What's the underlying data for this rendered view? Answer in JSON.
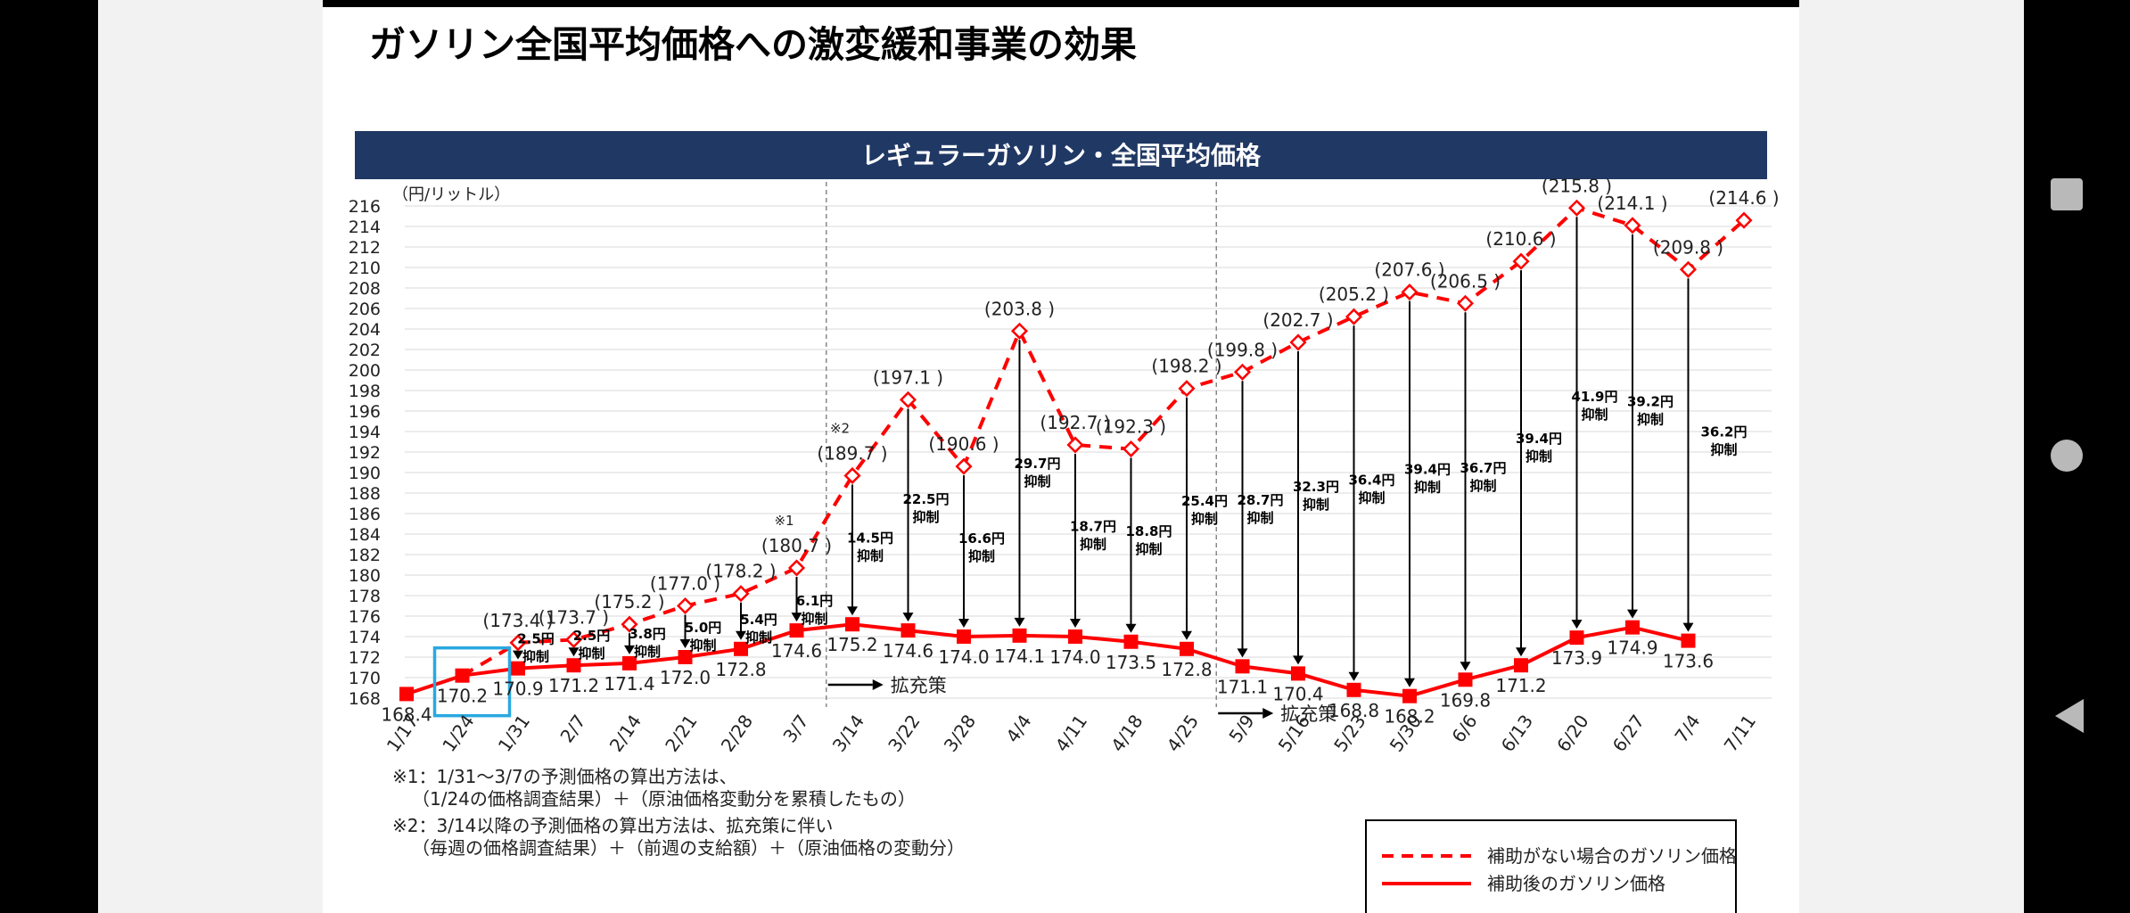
{
  "slide_title": "ガソリン全国平均価格への激変緩和事業の効果",
  "chart_data": {
    "type": "line",
    "title": "レギュラーガソリン・全国平均価格",
    "ylabel": "（円/リットル）",
    "ylim": [
      168,
      216
    ],
    "ytick_step": 2,
    "categories": [
      "1/17",
      "1/24",
      "1/31",
      "2/7",
      "2/14",
      "2/21",
      "2/28",
      "3/7",
      "3/14",
      "3/22",
      "3/28",
      "4/4",
      "4/11",
      "4/18",
      "4/25",
      "5/9",
      "5/16",
      "5/23",
      "5/30",
      "6/6",
      "6/13",
      "6/20",
      "6/27",
      "7/4",
      "7/11"
    ],
    "series": [
      {
        "name": "補助がない場合のガソリン価格",
        "style": "dashed",
        "color": "#ff0000",
        "start_index": 2,
        "values": [
          null,
          null,
          173.4,
          173.7,
          175.2,
          177.0,
          178.2,
          180.7,
          189.7,
          197.1,
          190.6,
          203.8,
          192.7,
          192.3,
          198.2,
          199.8,
          202.7,
          205.2,
          207.6,
          206.5,
          210.6,
          215.8,
          214.1,
          209.8,
          214.6
        ],
        "labels": [
          null,
          null,
          "(173.4 )",
          "(173.7 )",
          "(175.2 )",
          "(177.0 )",
          "(178.2 )",
          "(180.7 )",
          "(189.7 )",
          "(197.1 )",
          "(190.6 )",
          "(203.8 )",
          "(192.7 )",
          "(192.3 )",
          "(198.2 )",
          "(199.8 )",
          "(202.7 )",
          "(205.2 )",
          "(207.6 )",
          "(206.5 )",
          "(210.6 )",
          "(215.8 )",
          "(214.1 )",
          "(209.8 )",
          "(214.6 )"
        ]
      },
      {
        "name": "補助後のガソリン価格",
        "style": "solid",
        "color": "#ff0000",
        "values": [
          168.4,
          170.2,
          170.9,
          171.2,
          171.4,
          172.0,
          172.8,
          174.6,
          175.2,
          174.6,
          174.0,
          174.1,
          174.0,
          173.5,
          172.8,
          171.1,
          170.4,
          168.8,
          168.2,
          169.8,
          171.2,
          173.9,
          174.9,
          173.6,
          null
        ],
        "labels": [
          "168.4",
          "170.2",
          "170.9",
          "171.2",
          "171.4",
          "172.0",
          "172.8",
          "174.6",
          "175.2",
          "174.6",
          "174.0",
          "174.1",
          "174.0",
          "173.5",
          "172.8",
          "171.1",
          "170.4",
          "168.8",
          "168.2",
          "169.8",
          "171.2",
          "173.9",
          "174.9",
          "173.6",
          null
        ]
      }
    ],
    "suppression": [
      {
        "i": 2,
        "amount": "2.5円",
        "word": "抑制"
      },
      {
        "i": 3,
        "amount": "2.5円",
        "word": "抑制"
      },
      {
        "i": 4,
        "amount": "3.8円",
        "word": "抑制"
      },
      {
        "i": 5,
        "amount": "5.0円",
        "word": "抑制"
      },
      {
        "i": 6,
        "amount": "5.4円",
        "word": "抑制"
      },
      {
        "i": 7,
        "amount": "6.1円",
        "word": "抑制"
      },
      {
        "i": 8,
        "amount": "14.5円",
        "word": "抑制"
      },
      {
        "i": 9,
        "amount": "22.5円",
        "word": "抑制"
      },
      {
        "i": 10,
        "amount": "16.6円",
        "word": "抑制"
      },
      {
        "i": 11,
        "amount": "29.7円",
        "word": "抑制"
      },
      {
        "i": 12,
        "amount": "18.7円",
        "word": "抑制"
      },
      {
        "i": 13,
        "amount": "18.8円",
        "word": "抑制"
      },
      {
        "i": 14,
        "amount": "25.4円",
        "word": "抑制"
      },
      {
        "i": 15,
        "amount": "28.7円",
        "word": "抑制"
      },
      {
        "i": 16,
        "amount": "32.3円",
        "word": "抑制"
      },
      {
        "i": 17,
        "amount": "36.4円",
        "word": "抑制"
      },
      {
        "i": 18,
        "amount": "39.4円",
        "word": "抑制"
      },
      {
        "i": 19,
        "amount": "36.7円",
        "word": "抑制"
      },
      {
        "i": 20,
        "amount": "39.4円",
        "word": "抑制"
      },
      {
        "i": 21,
        "amount": "41.9円",
        "word": "抑制"
      },
      {
        "i": 22,
        "amount": "39.2円",
        "word": "抑制"
      },
      {
        "i": 23,
        "amount": "36.2円",
        "word": "抑制"
      }
    ],
    "footnote_marks": [
      {
        "i": 7,
        "text": "※1"
      },
      {
        "i": 8,
        "text": "※2"
      }
    ],
    "phase_dividers": [
      7.5,
      14.5
    ],
    "expansion_labels": [
      {
        "from": 7.5,
        "text": "拡充策"
      },
      {
        "from": 14.5,
        "text": "拡充策"
      }
    ],
    "highlight_index": 1,
    "highlight_color": "#29a8e0",
    "title_bar_color": "#203864",
    "legend": [
      {
        "text": "補助がない場合のガソリン価格",
        "style": "dashed"
      },
      {
        "text": "補助後のガソリン価格",
        "style": "solid"
      }
    ]
  },
  "notes": [
    "※1：1/31～3/7の予測価格の算出方法は、",
    "（1/24の価格調査結果）＋（原油価格変動分を累積したもの）",
    "※2：3/14以降の予測価格の算出方法は、拡充策に伴い",
    "（毎週の価格調査結果）＋（前週の支給額）＋（原油価格の変動分）"
  ]
}
